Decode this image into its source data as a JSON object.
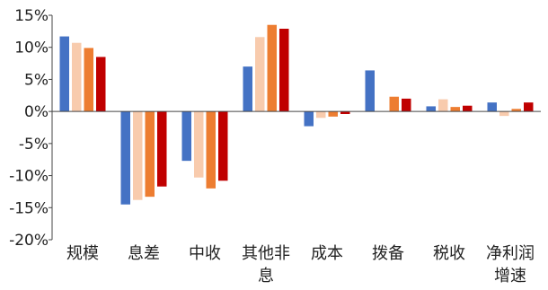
{
  "chart_data": {
    "type": "bar",
    "categories": [
      [
        "规模"
      ],
      [
        "息差"
      ],
      [
        "中收"
      ],
      [
        "其他非",
        "息"
      ],
      [
        "成本"
      ],
      [
        "拨备"
      ],
      [
        "税收"
      ],
      [
        "净利润",
        "增速"
      ]
    ],
    "series": [
      {
        "color": "#4472C4",
        "values": [
          11.7,
          -14.5,
          -7.7,
          7.0,
          -2.3,
          6.4,
          0.8,
          1.4
        ]
      },
      {
        "color": "#F8CBAD",
        "values": [
          10.7,
          -13.8,
          -10.3,
          11.6,
          -1.0,
          0.0,
          1.9,
          -0.7
        ]
      },
      {
        "color": "#ED7D31",
        "values": [
          9.9,
          -13.3,
          -12.0,
          13.5,
          -0.8,
          2.3,
          0.7,
          0.4
        ]
      },
      {
        "color": "#C00000",
        "values": [
          8.5,
          -11.7,
          -10.8,
          12.9,
          -0.4,
          2.0,
          0.9,
          1.4
        ]
      }
    ],
    "ylim": [
      -20,
      15
    ],
    "yticks": [
      15,
      10,
      5,
      0,
      -5,
      -10,
      -15,
      -20
    ],
    "ytick_labels": [
      "15%",
      "10%",
      "5%",
      "0%",
      "-5%",
      "-10%",
      "-15%",
      "-20%"
    ],
    "grid": false,
    "legend": "none"
  }
}
